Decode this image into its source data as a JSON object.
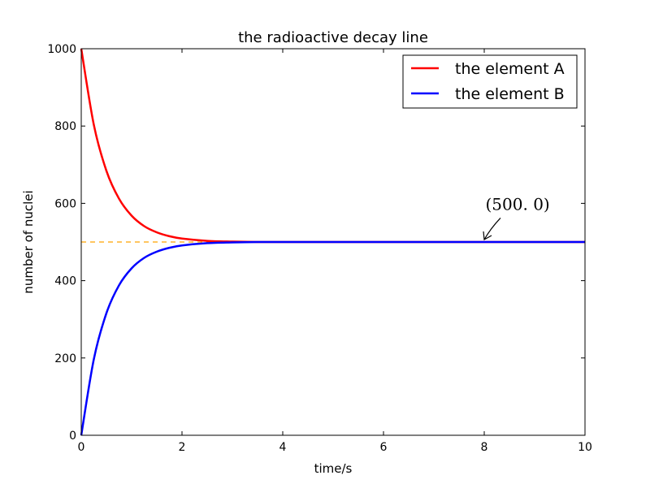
{
  "chart_data": {
    "type": "line",
    "title": "the radioactive decay line",
    "xlabel": "time/s",
    "ylabel": "number of nuclei",
    "xlim": [
      0,
      10
    ],
    "ylim": [
      0,
      1000
    ],
    "xticks": [
      0,
      2,
      4,
      6,
      8,
      10
    ],
    "yticks": [
      0,
      200,
      400,
      600,
      800,
      1000
    ],
    "grid": false,
    "legend_position": "top-right",
    "x": [
      0,
      0.25,
      0.5,
      0.75,
      1,
      1.25,
      1.5,
      1.75,
      2,
      2.5,
      3,
      3.5,
      4,
      5,
      6,
      7,
      8,
      9,
      10
    ],
    "series": [
      {
        "name": "the element A",
        "color": "#ff0000",
        "values": [
          1000,
          803,
          684,
          612,
          568,
          541,
          525,
          515,
          509,
          503,
          501,
          500,
          500,
          500,
          500,
          500,
          500,
          500,
          500
        ]
      },
      {
        "name": "the element B",
        "color": "#0000ff",
        "values": [
          0,
          197,
          316,
          388,
          432,
          459,
          475,
          485,
          491,
          497,
          499,
          500,
          500,
          500,
          500,
          500,
          500,
          500,
          500
        ]
      }
    ],
    "reference_line": {
      "y": 500,
      "color": "#ffa500",
      "style": "dashed"
    },
    "annotation": {
      "text": "(500. 0)",
      "point": [
        8,
        500
      ],
      "text_position": [
        8.25,
        600
      ]
    }
  }
}
